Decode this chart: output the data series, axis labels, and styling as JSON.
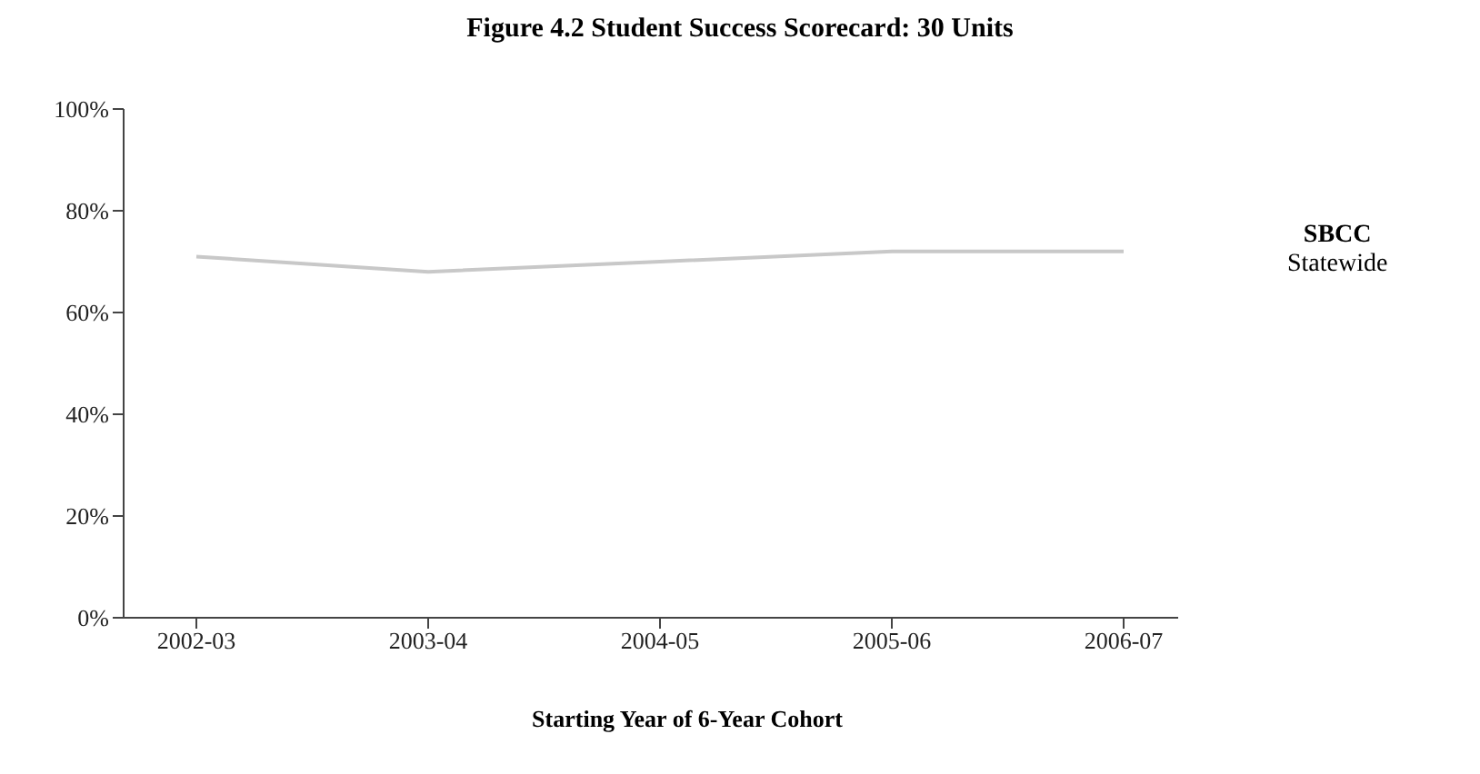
{
  "chart_data": {
    "type": "line",
    "title": "Figure 4.2 Student Success Scorecard: 30 Units",
    "xlabel": "Starting Year of 6-Year Cohort",
    "categories": [
      "2002-03",
      "2003-04",
      "2004-05",
      "2005-06",
      "2006-07"
    ],
    "series": [
      {
        "name": "Statewide",
        "color": "#c8c8c8",
        "values": [
          71,
          68,
          70,
          72,
          72
        ]
      }
    ],
    "annotations": [
      "SBCC"
    ],
    "ylim": [
      0,
      100
    ],
    "yticks": [
      {
        "value": 0,
        "label": "0%"
      },
      {
        "value": 20,
        "label": "20%"
      },
      {
        "value": 40,
        "label": "40%"
      },
      {
        "value": 60,
        "label": "60%"
      },
      {
        "value": 80,
        "label": "80%"
      },
      {
        "value": 100,
        "label": "100%"
      }
    ],
    "grid": false,
    "marker": "none",
    "line_style": "solid"
  }
}
